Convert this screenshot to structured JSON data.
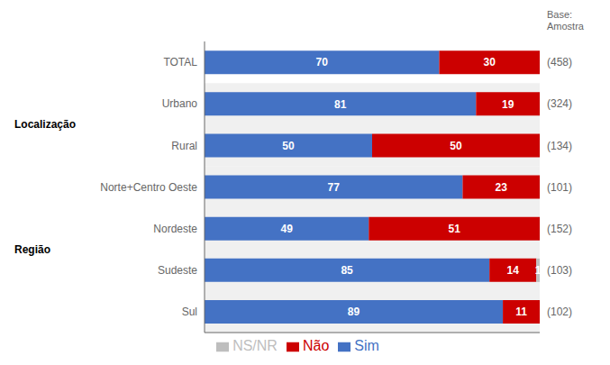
{
  "chart_data": {
    "type": "bar",
    "orientation": "horizontal",
    "stacked": true,
    "data_labels": true,
    "tick_labels": "y",
    "legend": "bottom",
    "categories": [
      "TOTAL",
      "Urbano",
      "Rural",
      "Norte+Centro Oeste",
      "Nordeste",
      "Sudeste",
      "Sul"
    ],
    "series": [
      {
        "name": "Sim",
        "color": "#4472C4",
        "values": [
          70,
          81,
          50,
          77,
          49,
          85,
          89
        ]
      },
      {
        "name": "Não",
        "color": "#CC0000",
        "values": [
          30,
          19,
          50,
          23,
          51,
          14,
          11
        ]
      },
      {
        "name": "NS/NR",
        "color": "#BEBEBE",
        "values": [
          0,
          0,
          0,
          0,
          0,
          1,
          0
        ]
      }
    ],
    "xlim": [
      0,
      100
    ],
    "sample_header": "Base:\nAmostra",
    "sample_sizes": [
      "(458)",
      "(324)",
      "(134)",
      "(101)",
      "(152)",
      "(103)",
      "(102)"
    ],
    "groups": [
      {
        "label": "Localização",
        "categories": [
          "Urbano",
          "Rural"
        ]
      },
      {
        "label": "Região",
        "categories": [
          "Norte+Centro Oeste",
          "Nordeste",
          "Sudeste",
          "Sul"
        ]
      }
    ]
  }
}
